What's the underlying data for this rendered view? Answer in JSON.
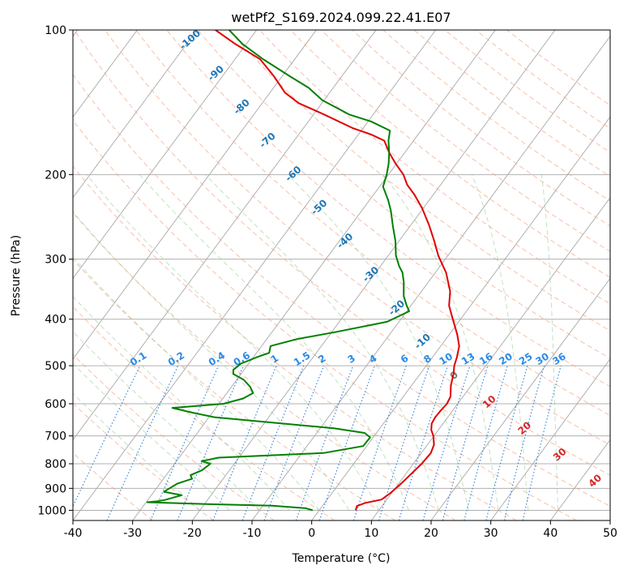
{
  "chart_data": {
    "type": "line",
    "title": "wetPf2_S169.2024.099.22.41.E07",
    "xlabel": "Temperature (°C)",
    "ylabel": "Pressure (hPa)",
    "xlim": [
      -40,
      50
    ],
    "ylim": [
      1050,
      100
    ],
    "y_scale": "log",
    "skew": "skew-T",
    "grid": true,
    "x_ticks": [
      "-40",
      "-30",
      "-20",
      "-10",
      "0",
      "10",
      "20",
      "30",
      "40",
      "50"
    ],
    "y_ticks": [
      "100",
      "200",
      "300",
      "400",
      "500",
      "600",
      "700",
      "800",
      "900",
      "1000"
    ],
    "series": [
      {
        "color": "#e00000",
        "points": [
          [
            6.1,
            1000
          ],
          [
            5.8,
            980
          ],
          [
            6.8,
            965
          ],
          [
            9.1,
            950
          ],
          [
            9.8,
            920
          ],
          [
            10.4,
            880
          ],
          [
            10.9,
            840
          ],
          [
            11.4,
            800
          ],
          [
            11.6,
            760
          ],
          [
            11.1,
            730
          ],
          [
            9.9,
            700
          ],
          [
            8.8,
            680
          ],
          [
            8.1,
            660
          ],
          [
            7.9,
            640
          ],
          [
            8.0,
            620
          ],
          [
            8.2,
            600
          ],
          [
            7.9,
            580
          ],
          [
            6.6,
            550
          ],
          [
            5.6,
            520
          ],
          [
            4.7,
            500
          ],
          [
            4.1,
            480
          ],
          [
            3.1,
            455
          ],
          [
            1.3,
            430
          ],
          [
            -1.3,
            400
          ],
          [
            -3.6,
            375
          ],
          [
            -5.2,
            350
          ],
          [
            -8.2,
            320
          ],
          [
            -11.6,
            295
          ],
          [
            -14.1,
            275
          ],
          [
            -16.9,
            255
          ],
          [
            -20.2,
            235
          ],
          [
            -23.2,
            220
          ],
          [
            -25.6,
            210
          ],
          [
            -27.5,
            200
          ],
          [
            -30.1,
            190
          ],
          [
            -32.6,
            180
          ],
          [
            -34.9,
            170
          ],
          [
            -37.9,
            165
          ],
          [
            -41.8,
            160
          ],
          [
            -48.2,
            150
          ],
          [
            -53.9,
            142
          ],
          [
            -57.5,
            135
          ],
          [
            -61.3,
            125
          ],
          [
            -65.8,
            115
          ],
          [
            -71.8,
            107
          ],
          [
            -76.9,
            100
          ]
        ]
      },
      {
        "color": "#008000",
        "points": [
          [
            -1.1,
            1000
          ],
          [
            -2.5,
            990
          ],
          [
            -8.5,
            978
          ],
          [
            -20.3,
            970
          ],
          [
            -29.8,
            962
          ],
          [
            -28.3,
            958
          ],
          [
            -27.2,
            952
          ],
          [
            -24.9,
            930
          ],
          [
            -28.3,
            915
          ],
          [
            -28.0,
            905
          ],
          [
            -27.1,
            880
          ],
          [
            -25.2,
            860
          ],
          [
            -25.9,
            845
          ],
          [
            -24.6,
            825
          ],
          [
            -24.0,
            800
          ],
          [
            -25.8,
            790
          ],
          [
            -23.4,
            777
          ],
          [
            -6.4,
            760
          ],
          [
            -0.6,
            735
          ],
          [
            -0.5,
            705
          ],
          [
            -2.0,
            690
          ],
          [
            -7.7,
            675
          ],
          [
            -29.1,
            640
          ],
          [
            -33.7,
            625
          ],
          [
            -37.3,
            612
          ],
          [
            -29.2,
            600
          ],
          [
            -26.6,
            585
          ],
          [
            -25.6,
            570
          ],
          [
            -26.9,
            553
          ],
          [
            -28.8,
            535
          ],
          [
            -31.3,
            520
          ],
          [
            -31.8,
            510
          ],
          [
            -31.3,
            495
          ],
          [
            -29.4,
            480
          ],
          [
            -27.9,
            470
          ],
          [
            -28.5,
            455
          ],
          [
            -24.9,
            440
          ],
          [
            -19.2,
            425
          ],
          [
            -12.0,
            405
          ],
          [
            -9.6,
            385
          ],
          [
            -10.7,
            375
          ],
          [
            -12.4,
            358
          ],
          [
            -14.1,
            335
          ],
          [
            -15.5,
            320
          ],
          [
            -16.9,
            310
          ],
          [
            -18.7,
            295
          ],
          [
            -20.6,
            275
          ],
          [
            -23.0,
            255
          ],
          [
            -25.1,
            238
          ],
          [
            -26.9,
            226
          ],
          [
            -29.4,
            212
          ],
          [
            -30.3,
            200
          ],
          [
            -31.3,
            190
          ],
          [
            -32.6,
            180
          ],
          [
            -34.2,
            170
          ],
          [
            -35.2,
            162
          ],
          [
            -39.5,
            155
          ],
          [
            -44.0,
            150
          ],
          [
            -50.3,
            140
          ],
          [
            -54.1,
            132
          ],
          [
            -58.6,
            125
          ],
          [
            -65.3,
            115
          ],
          [
            -70.6,
            107
          ],
          [
            -74.6,
            100
          ]
        ]
      }
    ],
    "dry_adiabat_labels": [
      "-100",
      "-90",
      "-80",
      "-70",
      "-60",
      "-50",
      "-40",
      "-30",
      "-20",
      "-10"
    ],
    "mixing_ratio_labels": [
      "0.1",
      "0.2",
      "0.4",
      "0.6",
      "1",
      "1.5",
      "2",
      "3",
      "4",
      "6",
      "8",
      "10",
      "13",
      "16",
      "20",
      "25",
      "30",
      "36"
    ],
    "isotherm_labels": [
      "0",
      "10",
      "20",
      "30",
      "40"
    ]
  }
}
